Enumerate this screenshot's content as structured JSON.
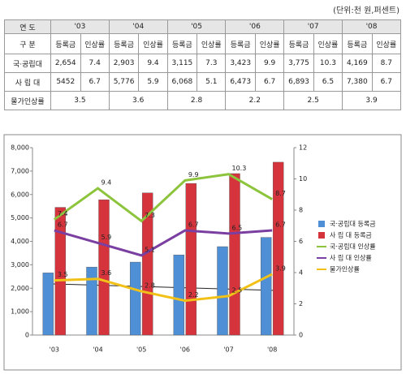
{
  "table": {
    "unit": "(단위:천 원,퍼센트)",
    "header": [
      "연 도",
      "'03",
      "'04",
      "'05",
      "'06",
      "'07",
      "'08"
    ],
    "subheader": [
      "구 분",
      "등록금",
      "인상률",
      "등록금",
      "인상률",
      "등록금",
      "인상률",
      "등록금",
      "인상률",
      "등록금",
      "인상률",
      "등록금",
      "인상률"
    ],
    "rows": [
      [
        "국·공립대",
        "2,654",
        "7.4",
        "2,903",
        "9.4",
        "3,115",
        "7.3",
        "3,423",
        "9.9",
        "3,775",
        "10.3",
        "4,169",
        "8.7"
      ],
      [
        "사 립 대",
        "5452",
        "6.7",
        "5,776",
        "5.9",
        "6,068",
        "5.1",
        "6,473",
        "6.7",
        "6,893",
        "6.5",
        "7,380",
        "6.7"
      ],
      [
        "물가인상률",
        "3.5",
        "3.6",
        "2.8",
        "2.2",
        "2.5",
        "3.9"
      ]
    ]
  },
  "chart_data": {
    "type": "bar-line",
    "categories": [
      "'03",
      "'04",
      "'05",
      "'06",
      "'07",
      "'08"
    ],
    "series": [
      {
        "name": "국·공립대 등록금",
        "type": "bar",
        "color": "#4f8fd6",
        "values": [
          2654,
          2903,
          3115,
          3423,
          3775,
          4169
        ]
      },
      {
        "name": "사 립 대 등록금",
        "type": "bar",
        "color": "#d6343c",
        "values": [
          5452,
          5776,
          6068,
          6473,
          6893,
          7380
        ]
      },
      {
        "name": "국·공립대 인상률",
        "type": "line",
        "axis": "y2",
        "color": "#8cc43c",
        "values": [
          7.4,
          9.4,
          7.3,
          9.9,
          10.3,
          8.7
        ]
      },
      {
        "name": "사 립 대 인상률",
        "type": "line",
        "axis": "y2",
        "color": "#7a3fa0",
        "values": [
          6.7,
          5.9,
          5.1,
          6.7,
          6.5,
          6.7
        ]
      },
      {
        "name": "물가인상률",
        "type": "line",
        "axis": "y2",
        "color": "#f2c118",
        "values": [
          3.5,
          3.6,
          2.8,
          2.2,
          2.5,
          3.9
        ]
      }
    ],
    "ylim": [
      0,
      8000
    ],
    "yticks": [
      0,
      {
        "value": 1000,
        "label": "1,000"
      },
      {
        "value": 2000,
        "label": "2,000"
      },
      {
        "value": 3000,
        "label": "3,000"
      },
      {
        "value": 4000,
        "label": "4,000"
      },
      {
        "value": 5000,
        "label": "5,000"
      },
      {
        "value": 6000,
        "label": "6,000"
      },
      {
        "value": 7000,
        "label": "7,000"
      },
      {
        "value": 8000,
        "label": "8,000"
      }
    ],
    "y2lim": [
      0,
      12
    ],
    "y2ticks": [
      0,
      2,
      4,
      6,
      8,
      10,
      12
    ],
    "legend": "right"
  }
}
